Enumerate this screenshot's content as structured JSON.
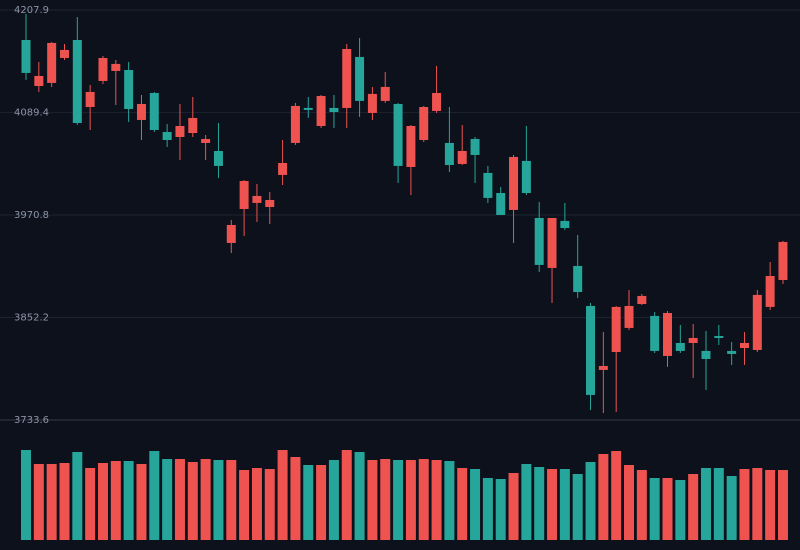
{
  "chart_data": {
    "type": "candlestick",
    "up_color": "#ef5350",
    "down_color": "#26a69a",
    "grid": true,
    "ylim": [
      3733.6,
      4207.9
    ],
    "yticks": [
      3733.6,
      3852.2,
      3970.8,
      4089.4,
      4207.9
    ],
    "open": [
      4173.2,
      4120.0,
      4123.5,
      4152.4,
      4173.2,
      4095.7,
      4125.8,
      4137.4,
      4138.5,
      4080.7,
      4111.9,
      4066.8,
      4061.0,
      4065.6,
      4054.1,
      4044.8,
      3938.4,
      3977.7,
      3984.7,
      3980.0,
      4017.1,
      4054.1,
      4094.6,
      4073.7,
      4094.6,
      4094.6,
      4153.6,
      4088.8,
      4102.7,
      4099.2,
      4026.3,
      4057.5,
      4091.1,
      4054.1,
      4029.8,
      4058.7,
      4019.4,
      3996.2,
      3976.6,
      4033.3,
      3967.3,
      3909.5,
      3963.9,
      3911.8,
      3865.5,
      3791.5,
      3812.3,
      3840.1,
      3867.8,
      3854.0,
      3807.7,
      3822.7,
      3822.7,
      3813.5,
      3830.8,
      3813.5,
      3816.9,
      3814.6,
      3864.4,
      3895.6
    ],
    "high": [
      4203.3,
      4147.8,
      4170.9,
      4168.6,
      4199.8,
      4121.2,
      4154.7,
      4150.1,
      4147.8,
      4109.6,
      4113.1,
      4076.1,
      4099.2,
      4107.3,
      4063.3,
      4077.2,
      3965.0,
      4011.3,
      4006.6,
      3997.4,
      4057.5,
      4100.4,
      4107.3,
      4109.6,
      4109.6,
      4168.6,
      4175.5,
      4118.9,
      4136.2,
      4100.4,
      4074.9,
      4096.9,
      4143.2,
      4095.7,
      4074.9,
      4061.0,
      4027.5,
      4003.2,
      4040.2,
      4073.7,
      3985.8,
      3967.3,
      3984.7,
      3947.7,
      3869.0,
      3835.5,
      3865.5,
      3884.0,
      3879.4,
      3858.6,
      3859.7,
      3843.5,
      3844.7,
      3836.6,
      3843.5,
      3823.9,
      3835.5,
      3884.0,
      3916.4,
      3940.7
    ],
    "low": [
      4127.0,
      4113.1,
      4118.9,
      4150.1,
      4074.9,
      4069.1,
      4122.3,
      4098.0,
      4078.4,
      4057.5,
      4066.8,
      4049.5,
      4034.4,
      4061.0,
      4034.4,
      4013.6,
      3926.8,
      3946.5,
      3962.7,
      3960.4,
      4005.5,
      4051.8,
      4083.0,
      4071.4,
      4071.4,
      4071.4,
      4084.2,
      4080.7,
      4100.4,
      4007.8,
      3993.9,
      4055.2,
      4088.8,
      4020.5,
      4028.6,
      4007.8,
      3984.7,
      3970.8,
      3938.4,
      3993.9,
      3904.8,
      3869.0,
      3953.4,
      3874.8,
      3745.2,
      3741.7,
      3742.9,
      3837.8,
      3866.7,
      3811.1,
      3795.0,
      3811.1,
      3782.2,
      3768.4,
      3820.4,
      3797.3,
      3797.3,
      3812.3,
      3860.9,
      3891.0
    ],
    "close": [
      4135.1,
      4131.6,
      4169.8,
      4161.7,
      4077.2,
      4113.1,
      4152.4,
      4145.5,
      4093.4,
      4099.2,
      4069.1,
      4057.5,
      4073.7,
      4083.0,
      4058.7,
      4027.5,
      3959.2,
      4010.1,
      3992.8,
      3988.1,
      4030.9,
      4096.9,
      4092.3,
      4108.4,
      4089.9,
      4162.8,
      4102.7,
      4110.8,
      4118.9,
      4027.5,
      4073.7,
      4095.7,
      4111.9,
      4028.6,
      4044.8,
      4040.2,
      3990.5,
      3970.8,
      4037.9,
      3996.2,
      3913.0,
      3967.3,
      3955.7,
      3881.7,
      3762.6,
      3796.1,
      3864.4,
      3865.5,
      3877.1,
      3813.5,
      3857.4,
      3813.5,
      3828.5,
      3804.2,
      3828.5,
      3810.0,
      3822.7,
      3878.3,
      3900.2,
      3939.6
    ],
    "volume": [
      90,
      76,
      76,
      77,
      88,
      72,
      77,
      79,
      79,
      76,
      89,
      81,
      81,
      78,
      81,
      80,
      80,
      70,
      72,
      71,
      90,
      83,
      75,
      75,
      80,
      90,
      88,
      80,
      81,
      80,
      80,
      81,
      80,
      79,
      72,
      71,
      62,
      61,
      67,
      76,
      73,
      71,
      71,
      66,
      78,
      86,
      89,
      75,
      70,
      62,
      62,
      60,
      66,
      72,
      72,
      64,
      71,
      72,
      70,
      70
    ]
  }
}
